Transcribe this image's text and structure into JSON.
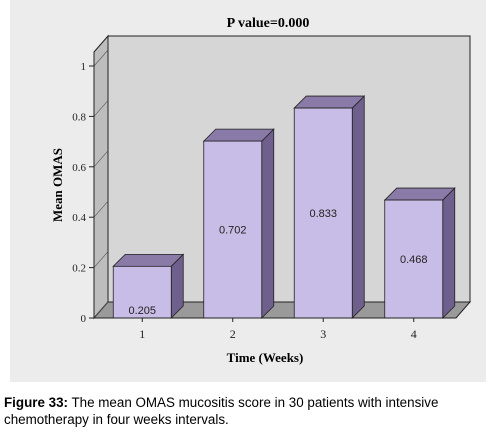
{
  "chart_data": {
    "type": "bar",
    "title": "P value=0.000",
    "xlabel": "Time (Weeks)",
    "ylabel": "Mean OMAS",
    "categories": [
      "1",
      "2",
      "3",
      "4"
    ],
    "values": [
      0.205,
      0.702,
      0.833,
      0.468
    ],
    "data_labels": [
      "0.205",
      "0.702",
      "0.833",
      "0.468"
    ],
    "yticks": [
      {
        "value": 0,
        "label": "0"
      },
      {
        "value": 0.2,
        "label": "0.2"
      },
      {
        "value": 0.4,
        "label": "0.4"
      },
      {
        "value": 0.6,
        "label": "0.6"
      },
      {
        "value": 0.8,
        "label": "0.8"
      },
      {
        "value": 1,
        "label": "1"
      }
    ],
    "ylim": [
      0,
      1
    ],
    "grid": false,
    "legend": "none",
    "colors": {
      "bar_front": "#c8bde6",
      "bar_top": "#8a7aa8",
      "bar_side": "#6f5f8d",
      "plot_back": "#d6d6d6",
      "floor": "#9a9a9a",
      "wall_side": "#bdbdbd"
    }
  },
  "caption": {
    "label": "Figure 33:",
    "text": " The mean OMAS mucositis score in 30 patients with intensive chemotherapy in four weeks intervals."
  }
}
